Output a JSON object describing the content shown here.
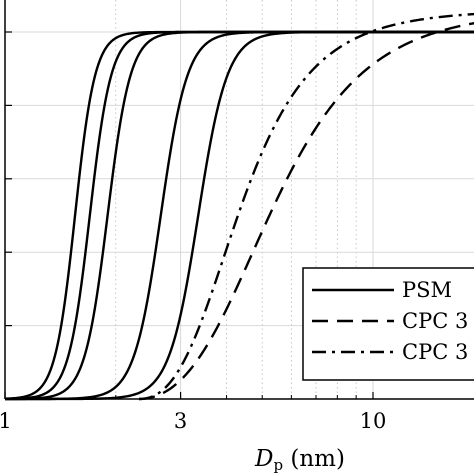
{
  "chart_data": {
    "type": "line",
    "xscale": "log",
    "xlim": [
      1,
      20
    ],
    "ylim": [
      0,
      1.05
    ],
    "grid": true,
    "minor_grid": true,
    "legend_position": "bottom-right",
    "xticks": [
      {
        "value": 1,
        "label": "1"
      },
      {
        "value": 3,
        "label": "3"
      },
      {
        "value": 10,
        "label": "10"
      }
    ],
    "yticks": [
      0,
      0.2,
      0.4,
      0.6,
      0.8,
      1.0
    ],
    "xlabel_main": "D",
    "xlabel_sub": "p",
    "xlabel_unit": " (nm)",
    "series": [
      {
        "name": "PSM",
        "style": "solid",
        "color": "#000000",
        "curves": [
          {
            "d50": 1.55,
            "k": 16,
            "ymax": 1.0
          },
          {
            "d50": 1.7,
            "k": 15,
            "ymax": 1.0
          },
          {
            "d50": 1.9,
            "k": 14,
            "ymax": 1.0
          },
          {
            "d50": 2.65,
            "k": 12,
            "ymax": 1.0
          },
          {
            "d50": 3.35,
            "k": 11,
            "ymax": 1.0
          }
        ]
      },
      {
        "name": "CPC 3",
        "style": "dashed",
        "color": "#000000",
        "curves": [
          {
            "d0": 2.3,
            "d50": 5.4,
            "k": 2.0,
            "ymax": 1.06
          }
        ]
      },
      {
        "name": "CPC 3",
        "style": "dashdot",
        "color": "#000000",
        "curves": [
          {
            "d0": 2.3,
            "d50": 4.4,
            "k": 2.2,
            "ymax": 1.06
          }
        ]
      }
    ]
  }
}
